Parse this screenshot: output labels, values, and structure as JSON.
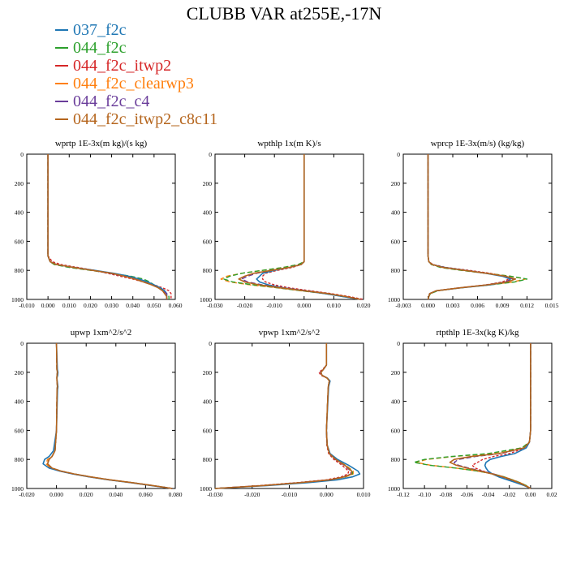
{
  "title": "CLUBB VAR at255E,-17N",
  "legend": [
    {
      "name": "037_f2c",
      "color": "#1f77b4"
    },
    {
      "name": "044_f2c",
      "color": "#2ca02c"
    },
    {
      "name": "044_f2c_itwp2",
      "color": "#d62728"
    },
    {
      "name": "044_f2c_clearwp3",
      "color": "#ff7f0e"
    },
    {
      "name": "044_f2c_c4",
      "color": "#6a3d9a"
    },
    {
      "name": "044_f2c_itwp2_c8c11",
      "color": "#b5651d"
    }
  ],
  "chart_data": [
    {
      "type": "line",
      "title": "wprtp  1E-3x(m kg)/(s kg)",
      "xlim": [
        -0.01,
        0.06
      ],
      "xticks": [
        "-0.010",
        "0.000",
        "0.010",
        "0.020",
        "0.030",
        "0.040",
        "0.050",
        "0.060"
      ],
      "ylim": [
        1000,
        0
      ],
      "yticks": [
        "0",
        "200",
        "400",
        "600",
        "800",
        "1000"
      ],
      "y": [
        0,
        500,
        700,
        740,
        760,
        780,
        800,
        820,
        840,
        860,
        880,
        900,
        920,
        940,
        960,
        980,
        1000
      ],
      "series": [
        {
          "values": [
            0,
            0,
            0,
            0.001,
            0.004,
            0.012,
            0.022,
            0.031,
            0.038,
            0.043,
            0.047,
            0.05,
            0.053,
            0.055,
            0.056,
            0.056,
            0.056
          ]
        },
        {
          "values": [
            0,
            0,
            0,
            0.001,
            0.003,
            0.01,
            0.02,
            0.03,
            0.039,
            0.045,
            0.048,
            0.05,
            0.052,
            0.054,
            0.056,
            0.057,
            0.057
          ]
        },
        {
          "values": [
            0,
            0,
            0,
            0.002,
            0.006,
            0.014,
            0.022,
            0.028,
            0.034,
            0.04,
            0.045,
            0.05,
            0.054,
            0.057,
            0.058,
            0.058,
            0.058
          ]
        },
        {
          "values": [
            0,
            0,
            0,
            0.001,
            0.003,
            0.011,
            0.021,
            0.03,
            0.037,
            0.042,
            0.046,
            0.049,
            0.052,
            0.054,
            0.055,
            0.056,
            0.056
          ]
        },
        {
          "values": [
            0,
            0,
            0,
            0.001,
            0.004,
            0.012,
            0.021,
            0.029,
            0.036,
            0.041,
            0.045,
            0.049,
            0.052,
            0.054,
            0.056,
            0.056,
            0.056
          ]
        },
        {
          "values": [
            0,
            0,
            0,
            0.001,
            0.004,
            0.012,
            0.021,
            0.03,
            0.036,
            0.041,
            0.045,
            0.049,
            0.052,
            0.054,
            0.055,
            0.056,
            0.056
          ]
        }
      ]
    },
    {
      "type": "line",
      "title": "wpthlp  1x(m K)/s",
      "xlim": [
        -0.03,
        0.02
      ],
      "xticks": [
        "-0.030",
        "-0.020",
        "-0.010",
        "0.000",
        "0.010",
        "0.020"
      ],
      "ylim": [
        1000,
        0
      ],
      "yticks": [
        "0",
        "200",
        "400",
        "600",
        "800",
        "1000"
      ],
      "y": [
        0,
        500,
        700,
        740,
        760,
        780,
        800,
        820,
        840,
        860,
        880,
        900,
        920,
        940,
        960,
        980,
        1000
      ],
      "series": [
        {
          "values": [
            0,
            0,
            0,
            0,
            -0.001,
            -0.005,
            -0.01,
            -0.014,
            -0.015,
            -0.016,
            -0.015,
            -0.012,
            -0.007,
            0.0,
            0.007,
            0.013,
            0.019
          ]
        },
        {
          "values": [
            0,
            0,
            0,
            0,
            -0.002,
            -0.007,
            -0.014,
            -0.021,
            -0.025,
            -0.027,
            -0.024,
            -0.017,
            -0.009,
            -0.001,
            0.007,
            0.013,
            0.019
          ]
        },
        {
          "values": [
            0,
            0,
            0,
            0,
            -0.001,
            -0.004,
            -0.009,
            -0.013,
            -0.014,
            -0.014,
            -0.013,
            -0.01,
            -0.005,
            0.002,
            0.009,
            0.015,
            0.02
          ]
        },
        {
          "values": [
            0,
            0,
            0,
            0,
            -0.002,
            -0.007,
            -0.014,
            -0.021,
            -0.026,
            -0.028,
            -0.025,
            -0.018,
            -0.009,
            -0.001,
            0.007,
            0.013,
            0.019
          ]
        },
        {
          "values": [
            0,
            0,
            0,
            0,
            -0.001,
            -0.005,
            -0.011,
            -0.016,
            -0.019,
            -0.021,
            -0.019,
            -0.014,
            -0.007,
            0.001,
            0.008,
            0.014,
            0.019
          ]
        },
        {
          "values": [
            0,
            0,
            0,
            0,
            -0.001,
            -0.005,
            -0.011,
            -0.017,
            -0.02,
            -0.022,
            -0.02,
            -0.015,
            -0.008,
            0.0,
            0.008,
            0.014,
            0.019
          ]
        }
      ]
    },
    {
      "type": "line",
      "title": "wprcp  1E-3x(m/s) (kg/kg)",
      "xlim": [
        -0.003,
        0.015
      ],
      "xticks": [
        "-0.003",
        "0.000",
        "0.003",
        "0.006",
        "0.009",
        "0.012",
        "0.015"
      ],
      "ylim": [
        1000,
        0
      ],
      "yticks": [
        "0",
        "200",
        "400",
        "600",
        "800",
        "1000"
      ],
      "y": [
        0,
        500,
        700,
        740,
        760,
        780,
        800,
        820,
        840,
        860,
        880,
        900,
        920,
        940,
        960,
        980,
        1000
      ],
      "series": [
        {
          "values": [
            0,
            0,
            0,
            0.0001,
            0.0005,
            0.002,
            0.0045,
            0.007,
            0.009,
            0.01,
            0.0095,
            0.0075,
            0.004,
            0.001,
            0.0002,
            0.0001,
            0
          ]
        },
        {
          "values": [
            0,
            0,
            0,
            0.0001,
            0.0004,
            0.0015,
            0.004,
            0.007,
            0.01,
            0.012,
            0.0105,
            0.0075,
            0.004,
            0.0012,
            0.0003,
            0.0001,
            0
          ]
        },
        {
          "values": [
            0,
            0,
            0,
            0.0001,
            0.0006,
            0.0022,
            0.005,
            0.0075,
            0.0092,
            0.0098,
            0.009,
            0.007,
            0.0038,
            0.001,
            0.0002,
            0.0001,
            0
          ]
        },
        {
          "values": [
            0,
            0,
            0,
            0.0001,
            0.0004,
            0.0016,
            0.0042,
            0.0072,
            0.01,
            0.0118,
            0.0103,
            0.0073,
            0.004,
            0.0011,
            0.0003,
            0.0001,
            0
          ]
        },
        {
          "values": [
            0,
            0,
            0,
            0.0001,
            0.0005,
            0.0018,
            0.0045,
            0.0072,
            0.0093,
            0.0103,
            0.0093,
            0.007,
            0.0038,
            0.001,
            0.0002,
            0.0001,
            0
          ]
        },
        {
          "values": [
            0,
            0,
            0,
            0.0001,
            0.0005,
            0.0018,
            0.0044,
            0.0071,
            0.0094,
            0.0106,
            0.0096,
            0.0072,
            0.0039,
            0.001,
            0.0002,
            0.0001,
            0
          ]
        }
      ]
    },
    {
      "type": "line",
      "title": "upwp  1xm^2/s^2",
      "xlim": [
        -0.02,
        0.08
      ],
      "xticks": [
        "-0.020",
        "0.000",
        "0.020",
        "0.040",
        "0.060",
        "0.080"
      ],
      "ylim": [
        1000,
        0
      ],
      "yticks": [
        "0",
        "200",
        "400",
        "600",
        "800",
        "1000"
      ],
      "y": [
        0,
        180,
        200,
        220,
        240,
        300,
        320,
        600,
        740,
        780,
        800,
        830,
        860,
        880,
        900,
        920,
        940,
        960,
        980,
        1000
      ],
      "series": [
        {
          "values": [
            0,
            0.0006,
            0.001,
            0.0008,
            0.0003,
            0.001,
            0.0007,
            0,
            -0.002,
            -0.005,
            -0.008,
            -0.009,
            -0.005,
            0.002,
            0.011,
            0.022,
            0.035,
            0.05,
            0.064,
            0.078
          ]
        },
        {
          "values": [
            0,
            0.0003,
            0.0006,
            0.0004,
            0.0002,
            0.0006,
            0.0004,
            0,
            -0.001,
            -0.003,
            -0.005,
            -0.006,
            -0.003,
            0.003,
            0.012,
            0.023,
            0.036,
            0.051,
            0.065,
            0.078
          ]
        },
        {
          "values": [
            0,
            0.0004,
            0.0008,
            0.0005,
            0.0002,
            0.0008,
            0.0005,
            0,
            -0.001,
            -0.003,
            -0.005,
            -0.006,
            -0.004,
            0.002,
            0.011,
            0.022,
            0.035,
            0.05,
            0.064,
            0.078
          ]
        },
        {
          "values": [
            0,
            0.0003,
            0.0006,
            0.0004,
            0.0002,
            0.0006,
            0.0004,
            0,
            -0.001,
            -0.003,
            -0.006,
            -0.007,
            -0.004,
            0.002,
            0.011,
            0.022,
            0.035,
            0.05,
            0.064,
            0.078
          ]
        },
        {
          "values": [
            0,
            0.0003,
            0.0006,
            0.0004,
            0.0002,
            0.0006,
            0.0004,
            0,
            -0.001,
            -0.003,
            -0.005,
            -0.006,
            -0.003,
            0.003,
            0.012,
            0.023,
            0.036,
            0.051,
            0.065,
            0.078
          ]
        },
        {
          "values": [
            0,
            0.0003,
            0.0006,
            0.0004,
            0.0002,
            0.0006,
            0.0004,
            0,
            -0.001,
            -0.003,
            -0.005,
            -0.006,
            -0.003,
            0.003,
            0.012,
            0.023,
            0.036,
            0.051,
            0.065,
            0.078
          ]
        }
      ]
    },
    {
      "type": "line",
      "title": "vpwp  1xm^2/s^2",
      "xlim": [
        -0.03,
        0.01
      ],
      "xticks": [
        "-0.030",
        "-0.020",
        "-0.010",
        "0.000",
        "0.010"
      ],
      "ylim": [
        1000,
        0
      ],
      "yticks": [
        "0",
        "200",
        "400",
        "600",
        "800",
        "1000"
      ],
      "y": [
        0,
        150,
        180,
        200,
        220,
        240,
        260,
        300,
        600,
        700,
        760,
        800,
        840,
        880,
        900,
        920,
        940,
        960,
        980,
        1000
      ],
      "series": [
        {
          "values": [
            0,
            0,
            -0.0008,
            -0.0015,
            -0.0012,
            0.0003,
            0.001,
            0.0006,
            0,
            0.0002,
            0.001,
            0.003,
            0.006,
            0.0085,
            0.009,
            0.007,
            0.003,
            -0.005,
            -0.016,
            -0.03
          ]
        },
        {
          "values": [
            0,
            0,
            -0.0008,
            -0.0015,
            -0.0012,
            0.0002,
            0.0008,
            0.0005,
            0,
            0.0002,
            0.0008,
            0.0025,
            0.005,
            0.007,
            0.007,
            0.005,
            0.001,
            -0.007,
            -0.017,
            -0.03
          ]
        },
        {
          "values": [
            0,
            0,
            -0.001,
            -0.002,
            -0.0015,
            0.0002,
            0.0008,
            0.0005,
            0,
            0.0001,
            0.0006,
            0.002,
            0.0042,
            0.006,
            0.0058,
            0.004,
            0.0,
            -0.008,
            -0.018,
            -0.03
          ]
        },
        {
          "values": [
            0,
            0,
            -0.0008,
            -0.0015,
            -0.0012,
            0.0002,
            0.0008,
            0.0005,
            0,
            0.0002,
            0.0008,
            0.0026,
            0.0052,
            0.0072,
            0.0072,
            0.0052,
            0.0012,
            -0.0068,
            -0.017,
            -0.03
          ]
        },
        {
          "values": [
            0,
            0,
            -0.0008,
            -0.0016,
            -0.0012,
            0.0002,
            0.0008,
            0.0005,
            0,
            0.0002,
            0.0008,
            0.0024,
            0.0048,
            0.0066,
            0.0066,
            0.0046,
            0.0008,
            -0.0072,
            -0.0172,
            -0.03
          ]
        },
        {
          "values": [
            0,
            0,
            -0.0008,
            -0.0015,
            -0.0012,
            0.0002,
            0.0008,
            0.0005,
            0,
            0.0002,
            0.0008,
            0.0025,
            0.005,
            0.0068,
            0.0068,
            0.0048,
            0.001,
            -0.007,
            -0.017,
            -0.03
          ]
        }
      ]
    },
    {
      "type": "line",
      "title": "rtpthlp  1E-3x(kg K)/kg",
      "xlim": [
        -0.12,
        0.02
      ],
      "xticks": [
        "-0.12",
        "-0.10",
        "-0.08",
        "-0.06",
        "-0.04",
        "-0.02",
        "0.00",
        "0.02"
      ],
      "ylim": [
        1000,
        0
      ],
      "yticks": [
        "0",
        "200",
        "400",
        "600",
        "800",
        "1000"
      ],
      "y": [
        0,
        600,
        680,
        720,
        760,
        780,
        800,
        820,
        840,
        860,
        880,
        900,
        920,
        940,
        960,
        980,
        1000
      ],
      "series": [
        {
          "values": [
            0,
            0,
            -0.001,
            -0.004,
            -0.015,
            -0.028,
            -0.038,
            -0.042,
            -0.043,
            -0.042,
            -0.04,
            -0.036,
            -0.03,
            -0.022,
            -0.014,
            -0.006,
            0
          ]
        },
        {
          "values": [
            0,
            0,
            -0.001,
            -0.008,
            -0.04,
            -0.075,
            -0.1,
            -0.11,
            -0.095,
            -0.07,
            -0.05,
            -0.035,
            -0.025,
            -0.017,
            -0.01,
            -0.004,
            0
          ]
        },
        {
          "values": [
            0,
            0,
            -0.001,
            -0.005,
            -0.02,
            -0.035,
            -0.045,
            -0.05,
            -0.055,
            -0.052,
            -0.045,
            -0.036,
            -0.028,
            -0.02,
            -0.012,
            -0.005,
            0
          ]
        },
        {
          "values": [
            0,
            0,
            -0.001,
            -0.008,
            -0.038,
            -0.072,
            -0.098,
            -0.108,
            -0.094,
            -0.07,
            -0.05,
            -0.035,
            -0.025,
            -0.017,
            -0.01,
            -0.004,
            0
          ]
        },
        {
          "values": [
            0,
            0,
            -0.001,
            -0.006,
            -0.028,
            -0.052,
            -0.068,
            -0.072,
            -0.068,
            -0.058,
            -0.046,
            -0.035,
            -0.026,
            -0.018,
            -0.011,
            -0.005,
            0
          ]
        },
        {
          "values": [
            0,
            0,
            -0.001,
            -0.006,
            -0.03,
            -0.056,
            -0.072,
            -0.076,
            -0.07,
            -0.06,
            -0.048,
            -0.036,
            -0.026,
            -0.018,
            -0.011,
            -0.005,
            0
          ]
        }
      ]
    }
  ]
}
